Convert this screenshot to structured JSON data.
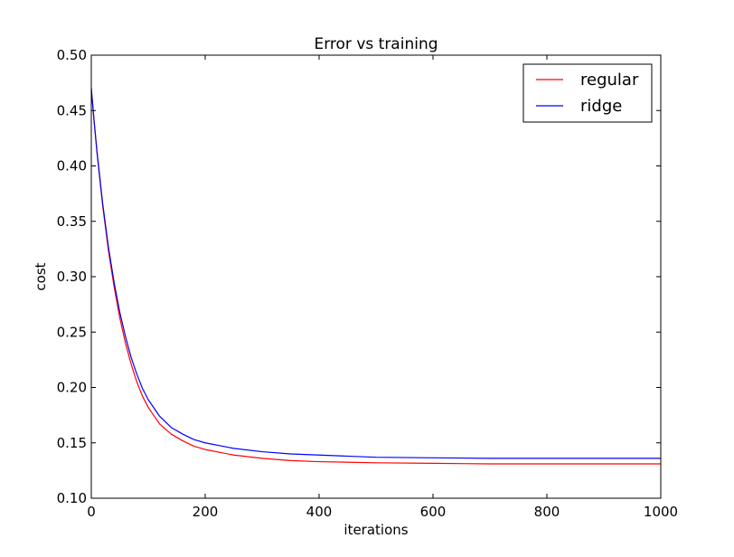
{
  "chart_data": {
    "type": "line",
    "title": "Error vs training",
    "xlabel": "iterations",
    "ylabel": "cost",
    "xlim": [
      0,
      1000
    ],
    "ylim": [
      0.1,
      0.5
    ],
    "xticks": [
      0,
      200,
      400,
      600,
      800,
      1000
    ],
    "xtick_labels": [
      "0",
      "200",
      "400",
      "600",
      "800",
      "1000"
    ],
    "yticks": [
      0.1,
      0.15,
      0.2,
      0.25,
      0.3,
      0.35,
      0.4,
      0.45,
      0.5
    ],
    "ytick_labels": [
      "0.10",
      "0.15",
      "0.20",
      "0.25",
      "0.30",
      "0.35",
      "0.40",
      "0.45",
      "0.50"
    ],
    "grid": false,
    "legend_position": "top-right",
    "x": [
      0,
      5,
      10,
      20,
      30,
      40,
      50,
      60,
      70,
      80,
      90,
      100,
      120,
      140,
      160,
      180,
      200,
      250,
      300,
      350,
      400,
      500,
      600,
      700,
      800,
      900,
      1000
    ],
    "series": [
      {
        "name": "regular",
        "color": "#ff0000",
        "values": [
          0.47,
          0.44,
          0.412,
          0.364,
          0.324,
          0.291,
          0.263,
          0.24,
          0.221,
          0.205,
          0.192,
          0.182,
          0.167,
          0.158,
          0.152,
          0.147,
          0.144,
          0.139,
          0.136,
          0.134,
          0.133,
          0.132,
          0.1315,
          0.131,
          0.131,
          0.131,
          0.131
        ]
      },
      {
        "name": "ridge",
        "color": "#0000ff",
        "values": [
          0.47,
          0.44,
          0.413,
          0.366,
          0.327,
          0.295,
          0.268,
          0.246,
          0.227,
          0.212,
          0.199,
          0.189,
          0.174,
          0.164,
          0.158,
          0.153,
          0.15,
          0.145,
          0.142,
          0.14,
          0.139,
          0.137,
          0.1365,
          0.136,
          0.136,
          0.136,
          0.136
        ]
      }
    ]
  }
}
